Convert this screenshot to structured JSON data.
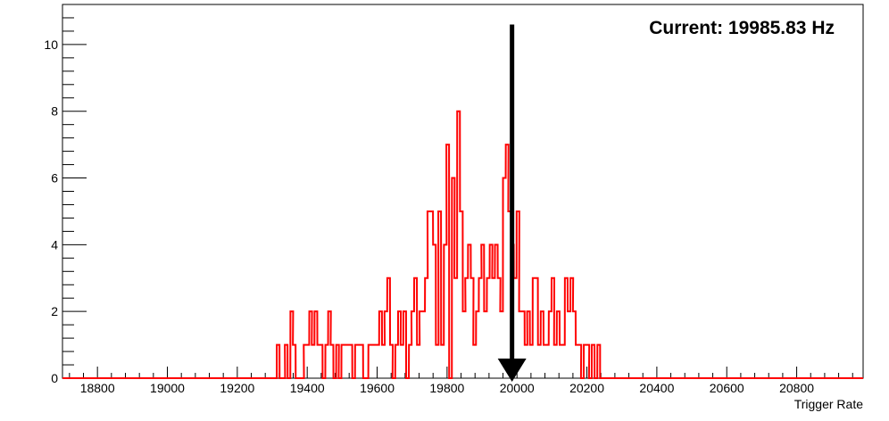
{
  "chart_data": {
    "type": "histogram",
    "title": "",
    "xlabel": "Trigger Rate",
    "ylabel": "",
    "xlim": [
      18700,
      20990
    ],
    "ylim": [
      0,
      11.2
    ],
    "x_ticks": [
      18800,
      19000,
      19200,
      19400,
      19600,
      19800,
      20000,
      20200,
      20400,
      20600,
      20800
    ],
    "y_ticks": [
      0,
      2,
      4,
      6,
      8,
      10
    ],
    "grid": false,
    "legend": "none",
    "line_color": "#ff0000",
    "bin_width": 7.7,
    "bins": [
      [
        19313,
        1
      ],
      [
        19321,
        0
      ],
      [
        19329,
        0
      ],
      [
        19336,
        1
      ],
      [
        19344,
        0
      ],
      [
        19352,
        2
      ],
      [
        19359,
        1
      ],
      [
        19367,
        0
      ],
      [
        19375,
        0
      ],
      [
        19383,
        0
      ],
      [
        19390,
        1
      ],
      [
        19398,
        1
      ],
      [
        19406,
        2
      ],
      [
        19413,
        1
      ],
      [
        19421,
        2
      ],
      [
        19429,
        1
      ],
      [
        19436,
        1
      ],
      [
        19444,
        0
      ],
      [
        19452,
        1
      ],
      [
        19460,
        2
      ],
      [
        19467,
        1
      ],
      [
        19475,
        0
      ],
      [
        19483,
        1
      ],
      [
        19490,
        0
      ],
      [
        19498,
        1
      ],
      [
        19506,
        1
      ],
      [
        19513,
        1
      ],
      [
        19521,
        1
      ],
      [
        19529,
        0
      ],
      [
        19537,
        1
      ],
      [
        19544,
        1
      ],
      [
        19552,
        1
      ],
      [
        19560,
        0
      ],
      [
        19567,
        0
      ],
      [
        19575,
        1
      ],
      [
        19583,
        1
      ],
      [
        19590,
        1
      ],
      [
        19598,
        1
      ],
      [
        19606,
        2
      ],
      [
        19614,
        1
      ],
      [
        19621,
        2
      ],
      [
        19629,
        3
      ],
      [
        19637,
        1
      ],
      [
        19644,
        0
      ],
      [
        19652,
        1
      ],
      [
        19660,
        2
      ],
      [
        19667,
        1
      ],
      [
        19675,
        2
      ],
      [
        19683,
        0
      ],
      [
        19691,
        1
      ],
      [
        19698,
        2
      ],
      [
        19706,
        3
      ],
      [
        19714,
        1
      ],
      [
        19721,
        2
      ],
      [
        19729,
        2
      ],
      [
        19737,
        3
      ],
      [
        19744,
        5
      ],
      [
        19752,
        5
      ],
      [
        19760,
        4
      ],
      [
        19768,
        1
      ],
      [
        19775,
        5
      ],
      [
        19783,
        1
      ],
      [
        19791,
        4
      ],
      [
        19798,
        7
      ],
      [
        19806,
        0
      ],
      [
        19814,
        6
      ],
      [
        19821,
        3
      ],
      [
        19829,
        8
      ],
      [
        19837,
        5
      ],
      [
        19845,
        2
      ],
      [
        19852,
        3
      ],
      [
        19860,
        4
      ],
      [
        19868,
        3
      ],
      [
        19875,
        1
      ],
      [
        19883,
        2
      ],
      [
        19891,
        3
      ],
      [
        19898,
        4
      ],
      [
        19906,
        2
      ],
      [
        19914,
        3
      ],
      [
        19922,
        4
      ],
      [
        19929,
        3
      ],
      [
        19937,
        4
      ],
      [
        19945,
        3
      ],
      [
        19952,
        2
      ],
      [
        19960,
        6
      ],
      [
        19968,
        7
      ],
      [
        19975,
        5
      ],
      [
        19983,
        4
      ],
      [
        19991,
        3
      ],
      [
        19999,
        5
      ],
      [
        20006,
        2
      ],
      [
        20014,
        2
      ],
      [
        20022,
        1
      ],
      [
        20029,
        2
      ],
      [
        20037,
        1
      ],
      [
        20045,
        3
      ],
      [
        20052,
        3
      ],
      [
        20060,
        1
      ],
      [
        20068,
        2
      ],
      [
        20076,
        1
      ],
      [
        20083,
        1
      ],
      [
        20091,
        2
      ],
      [
        20099,
        3
      ],
      [
        20106,
        1
      ],
      [
        20114,
        2
      ],
      [
        20122,
        1
      ],
      [
        20129,
        1
      ],
      [
        20137,
        3
      ],
      [
        20145,
        2
      ],
      [
        20153,
        3
      ],
      [
        20160,
        2
      ],
      [
        20168,
        1
      ],
      [
        20176,
        1
      ],
      [
        20183,
        0
      ],
      [
        20191,
        1
      ],
      [
        20199,
        1
      ],
      [
        20206,
        0
      ],
      [
        20214,
        1
      ],
      [
        20222,
        0
      ],
      [
        20230,
        1
      ]
    ],
    "annotations": [
      {
        "text": "Current: 19985.83 Hz",
        "type": "label",
        "position": "top-right"
      },
      {
        "type": "arrow",
        "x": 19985.83,
        "from_y": 10.6,
        "to_y": 0,
        "color": "#000000"
      }
    ]
  }
}
